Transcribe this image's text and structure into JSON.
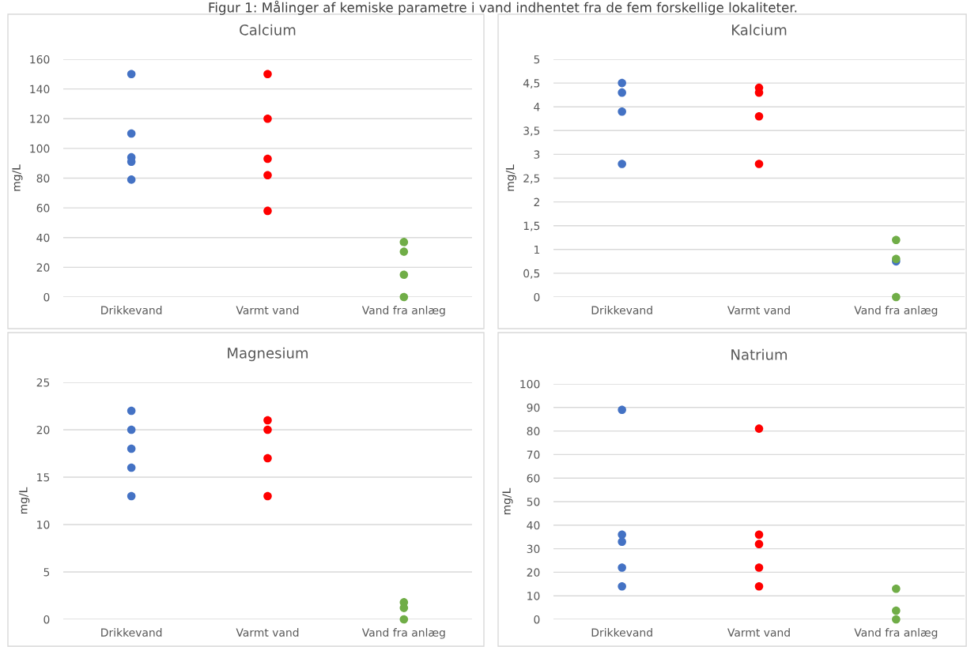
{
  "chart_data": [
    {
      "type": "scatter",
      "title": "Calcium",
      "ylabel": "mg/L",
      "annotations": [
        "Figur 1: Målinger af kemiske parametre i vand indhentet fra de fem forskellige lokaliteter."
      ],
      "categories": [
        "Drikkevand",
        "Varmt vand",
        "Vand fra anlæg"
      ],
      "ylim": [
        0,
        160
      ],
      "yticks": [
        0,
        20,
        40,
        60,
        80,
        100,
        120,
        140,
        160
      ],
      "grid": "y",
      "marker": "circle",
      "series": [
        {
          "color": "#4472c4",
          "x": [
            "Drikkevand",
            "Drikkevand",
            "Drikkevand",
            "Drikkevand",
            "Drikkevand"
          ],
          "values": [
            150,
            110,
            94,
            91,
            79
          ]
        },
        {
          "color": "#ff0000",
          "x": [
            "Varmt vand",
            "Varmt vand",
            "Varmt vand",
            "Varmt vand",
            "Varmt vand"
          ],
          "values": [
            150,
            120,
            93,
            82,
            58
          ]
        },
        {
          "color": "#70ad47",
          "x": [
            "Vand fra anlæg",
            "Vand fra anlæg",
            "Vand fra anlæg",
            "Vand fra anlæg"
          ],
          "values": [
            37,
            30.5,
            15,
            0
          ]
        }
      ]
    },
    {
      "type": "scatter",
      "title": "Kalcium",
      "ylabel": "mg/L",
      "categories": [
        "Drikkevand",
        "Varmt vand",
        "Vand fra anlæg"
      ],
      "ylim": [
        0,
        5
      ],
      "yticks": [
        0,
        {
          "value": 0.5,
          "label": "0,5"
        },
        1,
        {
          "value": 1.5,
          "label": "1,5"
        },
        2,
        {
          "value": 2.5,
          "label": "2,5"
        },
        3,
        {
          "value": 3.5,
          "label": "3,5"
        },
        4,
        {
          "value": 4.5,
          "label": "4,5"
        },
        5
      ],
      "grid": "y",
      "marker": "circle",
      "series": [
        {
          "color": "#4472c4",
          "x": [
            "Drikkevand",
            "Drikkevand",
            "Drikkevand",
            "Drikkevand",
            "Vand fra anlæg"
          ],
          "values": [
            4.5,
            4.3,
            3.9,
            2.8,
            0.75
          ]
        },
        {
          "color": "#ff0000",
          "x": [
            "Varmt vand",
            "Varmt vand",
            "Varmt vand",
            "Varmt vand"
          ],
          "values": [
            4.4,
            4.3,
            3.8,
            2.8
          ]
        },
        {
          "color": "#70ad47",
          "x": [
            "Vand fra anlæg",
            "Vand fra anlæg",
            "Vand fra anlæg"
          ],
          "values": [
            1.2,
            0.8,
            0
          ]
        }
      ]
    },
    {
      "type": "scatter",
      "title": "Magnesium",
      "ylabel": "mg/L",
      "categories": [
        "Drikkevand",
        "Varmt vand",
        "Vand fra anlæg"
      ],
      "ylim": [
        0,
        25
      ],
      "yticks": [
        0,
        5,
        10,
        15,
        20,
        25
      ],
      "grid": "y",
      "marker": "circle",
      "series": [
        {
          "color": "#4472c4",
          "x": [
            "Drikkevand",
            "Drikkevand",
            "Drikkevand",
            "Drikkevand",
            "Drikkevand"
          ],
          "values": [
            22,
            20,
            18,
            16,
            13
          ]
        },
        {
          "color": "#ff0000",
          "x": [
            "Varmt vand",
            "Varmt vand",
            "Varmt vand",
            "Varmt vand"
          ],
          "values": [
            21,
            20,
            17,
            13
          ]
        },
        {
          "color": "#70ad47",
          "x": [
            "Vand fra anlæg",
            "Vand fra anlæg",
            "Vand fra anlæg"
          ],
          "values": [
            1.8,
            1.2,
            0
          ]
        }
      ]
    },
    {
      "type": "scatter",
      "title": "Natrium",
      "ylabel": "mg/L",
      "categories": [
        "Drikkevand",
        "Varmt vand",
        "Vand fra anlæg"
      ],
      "ylim": [
        0,
        100
      ],
      "yticks": [
        0,
        10,
        20,
        30,
        40,
        50,
        60,
        70,
        80,
        90,
        100
      ],
      "grid": "y",
      "marker": "circle",
      "series": [
        {
          "color": "#4472c4",
          "x": [
            "Drikkevand",
            "Drikkevand",
            "Drikkevand",
            "Drikkevand",
            "Drikkevand"
          ],
          "values": [
            89,
            36,
            33,
            22,
            14
          ]
        },
        {
          "color": "#ff0000",
          "x": [
            "Varmt vand",
            "Varmt vand",
            "Varmt vand",
            "Varmt vand",
            "Varmt vand"
          ],
          "values": [
            81,
            36,
            32,
            22,
            14
          ]
        },
        {
          "color": "#70ad47",
          "x": [
            "Vand fra anlæg",
            "Vand fra anlæg",
            "Vand fra anlæg"
          ],
          "values": [
            13,
            3.7,
            0
          ]
        }
      ]
    }
  ]
}
